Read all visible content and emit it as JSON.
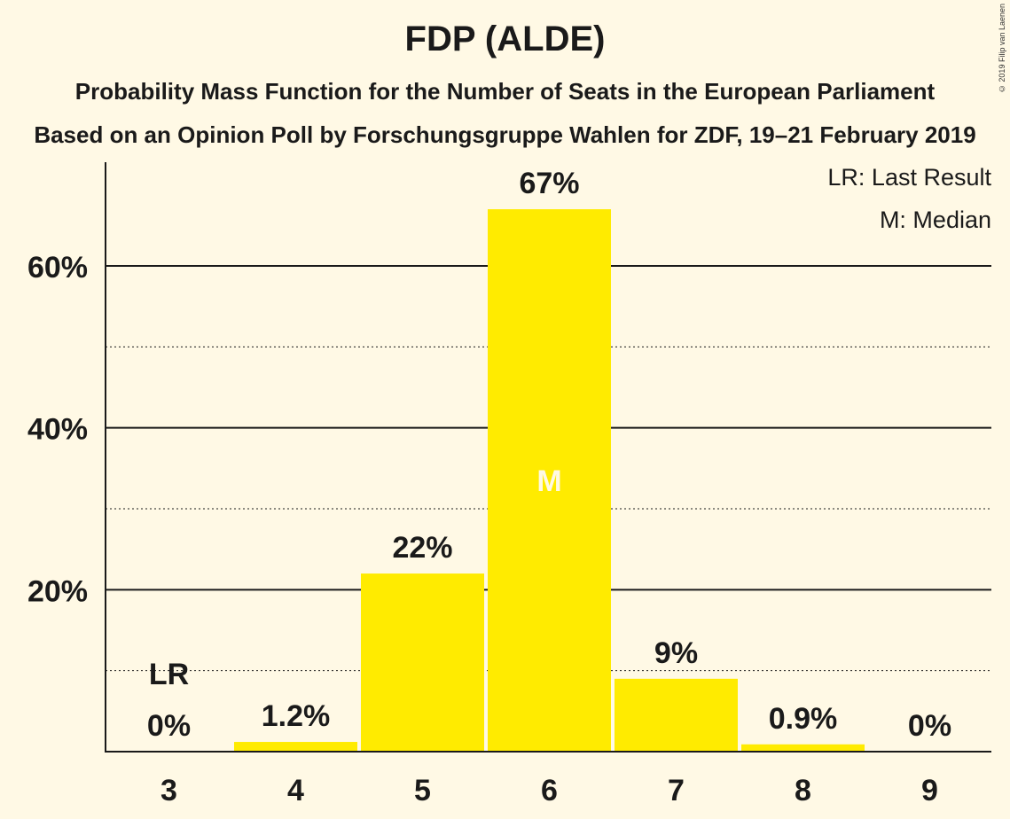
{
  "header": {
    "title": "FDP (ALDE)",
    "subtitle1": "Probability Mass Function for the Number of Seats in the European Parliament",
    "subtitle2": "Based on an Opinion Poll by Forschungsgruppe Wahlen for ZDF, 19–21 February 2019",
    "copyright": "© 2019 Filip van Laenen"
  },
  "legend": {
    "lr": "LR: Last Result",
    "m": "M: Median"
  },
  "colors": {
    "background": "#fff9e5",
    "bar": "#ffeb00",
    "text": "#1a1a1a",
    "median_label": "#fff9e5"
  },
  "chart_data": {
    "type": "bar",
    "categories": [
      "3",
      "4",
      "5",
      "6",
      "7",
      "8",
      "9"
    ],
    "values": [
      0,
      1.2,
      22,
      67,
      9,
      0.9,
      0
    ],
    "labels": [
      "0%",
      "1.2%",
      "22%",
      "67%",
      "9%",
      "0.9%",
      "0%"
    ],
    "title": "FDP (ALDE)",
    "xlabel": "",
    "ylabel": "",
    "ylim": [
      0,
      73
    ],
    "yticks": [
      20,
      40,
      60
    ],
    "ytick_labels": [
      "20%",
      "40%",
      "60%"
    ],
    "minor_gridlines": [
      10,
      30,
      50
    ],
    "last_result": "3",
    "last_result_marker": "LR",
    "median": "6",
    "median_marker": "M",
    "legend_position": "top-right"
  }
}
